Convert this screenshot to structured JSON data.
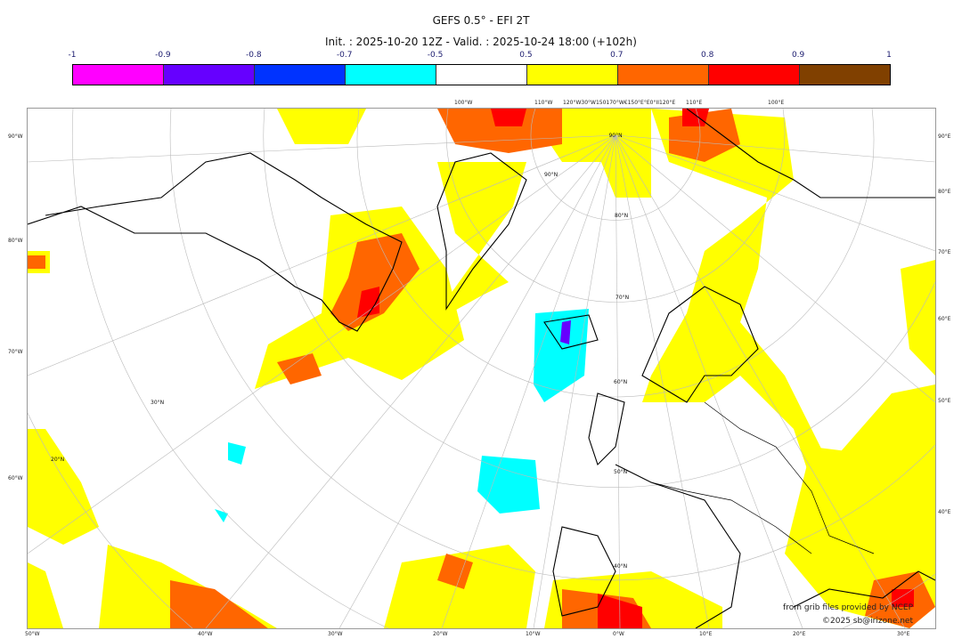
{
  "title": "GEFS 0.5° - EFI 2T",
  "subtitle": "Init. : 2025-10-20 12Z - Valid. : 2025-10-24 18:00 (+102h)",
  "colorbar": {
    "ticks": [
      "-1",
      "-0.9",
      "-0.8",
      "-0.7",
      "-0.5",
      "0.5",
      "0.7",
      "0.8",
      "0.9",
      "1"
    ],
    "colors": [
      "#ff00ff",
      "#6600ff",
      "#0033ff",
      "#00ffff",
      "#ffffff",
      "#ffff00",
      "#ff6600",
      "#ff0000",
      "#804000"
    ]
  },
  "map": {
    "top_labels": [
      "100°W",
      "110°W",
      "120°W30°W150170°W€150°E°E0°II120°E",
      "110°E",
      "100°E"
    ],
    "bottom_labels": [
      "50°W",
      "40°W",
      "30°W",
      "20°W",
      "10°W",
      "0°W",
      "10°E",
      "20°E",
      "30°E"
    ],
    "left_labels": [
      "90°W",
      "80°W",
      "70°W",
      "60°W"
    ],
    "right_labels": [
      "90°E",
      "80°E",
      "70°E",
      "60°E",
      "50°E",
      "40°E"
    ],
    "lat_labels": [
      "90°N",
      "80°N",
      "70°N",
      "60°N",
      "50°N",
      "40°N",
      "30°N",
      "20°N"
    ],
    "pole_label": "90°N",
    "credit": "from grib files provided by NCEP",
    "copyright": "©2025 sb@irizone.net"
  }
}
